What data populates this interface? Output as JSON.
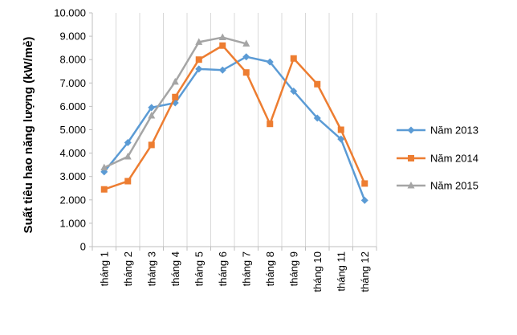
{
  "chart_data": {
    "type": "line",
    "ylabel": "Suất tiêu hao năng lượng (kW/mẻ)",
    "xlabel": "",
    "ylim": [
      0,
      10000
    ],
    "y_ticks": [
      0,
      1000,
      2000,
      3000,
      4000,
      5000,
      6000,
      7000,
      8000,
      9000,
      10000
    ],
    "y_tick_labels": [
      "0",
      "1.000",
      "2.000",
      "3.000",
      "4.000",
      "5.000",
      "6.000",
      "7.000",
      "8.000",
      "9.000",
      "10.000"
    ],
    "categories": [
      "tháng 1",
      "tháng 2",
      "tháng 3",
      "tháng 4",
      "tháng 5",
      "tháng 6",
      "tháng 7",
      "tháng 8",
      "tháng 9",
      "tháng 10",
      "tháng 11",
      "tháng 12"
    ],
    "grid": "vertical",
    "legend_position": "right",
    "series": [
      {
        "name": "Năm 2013",
        "color": "#5B9BD5",
        "marker": "diamond",
        "values": [
          3200,
          4450,
          5950,
          6150,
          7600,
          7550,
          8120,
          7900,
          6650,
          5500,
          4600,
          1980
        ]
      },
      {
        "name": "Năm 2014",
        "color": "#ED7D31",
        "marker": "square",
        "values": [
          2450,
          2800,
          4350,
          6400,
          8000,
          8600,
          7450,
          5250,
          8050,
          6950,
          5000,
          2700
        ]
      },
      {
        "name": "Năm 2015",
        "color": "#A5A5A5",
        "marker": "triangle",
        "values": [
          3380,
          3850,
          5600,
          7050,
          8750,
          8950,
          8680,
          null,
          null,
          null,
          null,
          null
        ]
      }
    ]
  }
}
